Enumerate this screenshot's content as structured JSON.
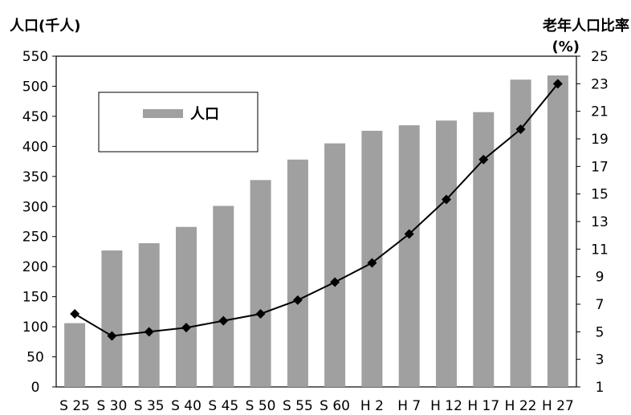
{
  "chart_data": {
    "type": "bar",
    "categories": [
      "S25",
      "S30",
      "S35",
      "S40",
      "S45",
      "S50",
      "S55",
      "S60",
      "H2",
      "H7",
      "H12",
      "H17",
      "H22",
      "H27"
    ],
    "category_labels": [
      "S 25",
      "S 30",
      "S 35",
      "S 40",
      "S 45",
      "S 50",
      "S 55",
      "S 60",
      "H 2",
      "H 7",
      "H 12",
      "H 17",
      "H 22",
      "H 27"
    ],
    "series": [
      {
        "name": "人口",
        "type": "bar",
        "axis": "left",
        "color": "#a0a0a0",
        "values": [
          106,
          227,
          239,
          266,
          301,
          344,
          378,
          405,
          426,
          435,
          443,
          457,
          511,
          518
        ]
      },
      {
        "name": "",
        "type": "line",
        "axis": "right",
        "color": "#000000",
        "marker": "diamond",
        "values": [
          6.3,
          4.7,
          5.0,
          5.3,
          5.8,
          6.3,
          7.3,
          8.6,
          10.0,
          12.1,
          14.6,
          17.5,
          19.7,
          23.0
        ]
      }
    ],
    "ylabel": "人口(千人)",
    "y2label_line1": "老年人口比率",
    "y2label_line2": "(%)",
    "ylim": [
      0,
      550
    ],
    "yticks": [
      0,
      50,
      100,
      150,
      200,
      250,
      300,
      350,
      400,
      450,
      500,
      550
    ],
    "y2lim": [
      1,
      25
    ],
    "y2ticks": [
      1,
      3,
      5,
      7,
      9,
      11,
      13,
      15,
      17,
      19,
      21,
      23,
      25
    ],
    "grid": false,
    "legend": {
      "position": "top-left",
      "entries": [
        "人口"
      ]
    }
  }
}
